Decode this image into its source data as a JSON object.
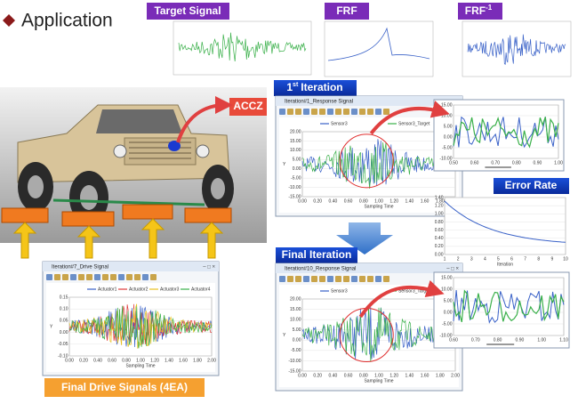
{
  "header": {
    "title": "Application"
  },
  "top_panels": [
    {
      "label": "Target Signal"
    },
    {
      "label": "FRF"
    },
    {
      "label": "FRF",
      "superscript": "-1"
    }
  ],
  "callouts": {
    "accz": "ACCZ",
    "first_iteration": {
      "number": "1",
      "suffix": "st",
      "text": "Iteration"
    },
    "final_iteration": "Final Iteration",
    "error_rate": "Error Rate",
    "final_drive": "Final Drive Signals (4EA)"
  },
  "windows": [
    {
      "title": "Iteration#1_Response Signal",
      "legend": [
        "Sensor3",
        "Sensor3_Target"
      ],
      "yticks": [
        "20.00",
        "15.00",
        "10.00",
        "5.00",
        "0.00",
        "-5.00",
        "-10.00",
        "-15.00"
      ],
      "xticks": [
        "0.00",
        "0.20",
        "0.40",
        "0.60",
        "0.80",
        "1.00",
        "1.20",
        "1.40",
        "1.60",
        "1.80",
        "2.00"
      ],
      "xlabel": "Sampling Time",
      "ylabel": "Y"
    },
    {
      "title": "Iteration#10_Response Signal",
      "legend": [
        "Sensor3",
        "Sensor3_Target"
      ],
      "yticks": [
        "20.00",
        "15.00",
        "10.00",
        "5.00",
        "0.00",
        "-5.00",
        "-10.00",
        "-15.00"
      ],
      "xticks": [
        "0.00",
        "0.20",
        "0.40",
        "0.60",
        "0.80",
        "1.00",
        "1.20",
        "1.40",
        "1.60",
        "1.80",
        "2.00"
      ],
      "xlabel": "Sampling Time",
      "ylabel": "Y"
    },
    {
      "title": "Iteration#7_Drive Signal",
      "legend": [
        "Actuator1",
        "Actuator2",
        "Actuator3",
        "Actuator4"
      ],
      "yticks": [
        "0.15",
        "0.10",
        "0.05",
        "0.00",
        "-0.05",
        "-0.10"
      ],
      "xticks": [
        "0.00",
        "0.20",
        "0.40",
        "0.60",
        "0.80",
        "1.00",
        "1.20",
        "1.40",
        "1.60",
        "1.80",
        "2.00"
      ],
      "xlabel": "Sampling Time",
      "ylabel": "Y"
    }
  ],
  "zooms": [
    {
      "yticks": [
        "15.00",
        "10.00",
        "5.00",
        "0.00",
        "-5.00",
        "-10.00"
      ],
      "xticks": [
        "0.50",
        "0.60",
        "0.70",
        "0.80",
        "0.90",
        "1.00"
      ]
    },
    {
      "yticks": [
        "15.00",
        "10.00",
        "5.00",
        "0.00",
        "-5.00",
        "-10.00"
      ],
      "xticks": [
        "0.60",
        "0.70",
        "0.80",
        "0.90",
        "1.00",
        "1.10"
      ]
    }
  ],
  "error_plot": {
    "yticks": [
      "1.40",
      "1.20",
      "1.00",
      "0.80",
      "0.60",
      "0.40",
      "0.20",
      "0.00"
    ],
    "xticks": [
      "1",
      "2",
      "3",
      "4",
      "5",
      "6",
      "7",
      "8",
      "9",
      "10"
    ],
    "xlabel": "Iteration"
  }
}
